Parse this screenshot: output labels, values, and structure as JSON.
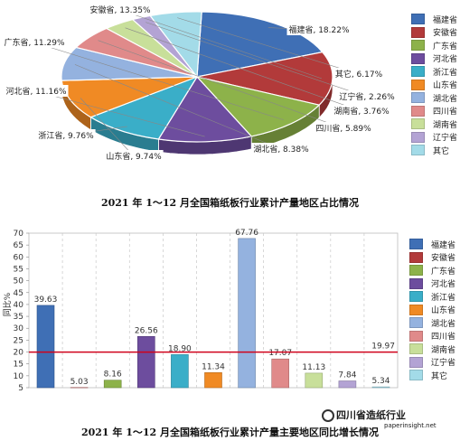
{
  "chart_data": [
    {
      "type": "pie",
      "title": "2021 年 1～12 月全国箱纸板行业累计产量地区占比情况",
      "series": [
        {
          "name": "福建省",
          "value": 18.22,
          "label": "福建省, 18.22%",
          "color": "#3f6fb5"
        },
        {
          "name": "安徽省",
          "value": 13.35,
          "label": "安徽省, 13.35%",
          "color": "#b23a3a"
        },
        {
          "name": "广东省",
          "value": 11.29,
          "label": "广东省, 11.29%",
          "color": "#8db24a"
        },
        {
          "name": "河北省",
          "value": 11.16,
          "label": "河北省, 11.16%",
          "color": "#6d4d9e"
        },
        {
          "name": "浙江省",
          "value": 9.76,
          "label": "浙江省, 9.76%",
          "color": "#3aaec8"
        },
        {
          "name": "山东省",
          "value": 9.74,
          "label": "山东省, 9.74%",
          "color": "#f08a24"
        },
        {
          "name": "湖北省",
          "value": 8.38,
          "label": "湖北省, 8.38%",
          "color": "#94b2df"
        },
        {
          "name": "四川省",
          "value": 5.89,
          "label": "四川省, 5.89%",
          "color": "#e08a8a"
        },
        {
          "name": "湖南省",
          "value": 3.76,
          "label": "湖南省, 3.76%",
          "color": "#c8df9a"
        },
        {
          "name": "辽宁省",
          "value": 2.26,
          "label": "辽宁省, 2.26%",
          "color": "#b3a3d4"
        },
        {
          "name": "其它",
          "value": 6.17,
          "label": "其它, 6.17%",
          "color": "#a3dbe8"
        }
      ],
      "legend": [
        "福建省",
        "安徽省",
        "广东省",
        "河北省",
        "浙江省",
        "山东省",
        "湖北省",
        "四川省",
        "湖南省",
        "辽宁省",
        "其它"
      ],
      "legend_position": "right"
    },
    {
      "type": "bar",
      "title": "2021 年 1～12 月全国箱纸板行业累计产量主要地区同比增长情况",
      "ylabel": "同比%",
      "ylim": [
        5,
        70
      ],
      "yticks": [
        5,
        10,
        15,
        20,
        25,
        30,
        35,
        40,
        45,
        50,
        55,
        60,
        65,
        70
      ],
      "categories": [
        "福建省",
        "安徽省",
        "广东省",
        "河北省",
        "浙江省",
        "山东省",
        "湖北省",
        "四川省",
        "湖南省",
        "辽宁省",
        "其它"
      ],
      "values": [
        39.63,
        5.03,
        8.16,
        26.56,
        18.9,
        11.34,
        67.76,
        17.07,
        11.13,
        7.84,
        5.34
      ],
      "value_labels": [
        "39.63",
        "5.03",
        "8.16",
        "26.56",
        "18.90",
        "11.34",
        "67.76",
        "17.07",
        "11.13",
        "7.84",
        "5.34"
      ],
      "colors": [
        "#3f6fb5",
        "#b23a3a",
        "#8db24a",
        "#6d4d9e",
        "#3aaec8",
        "#f08a24",
        "#94b2df",
        "#e08a8a",
        "#c8df9a",
        "#b3a3d4",
        "#a3dbe8"
      ],
      "reference_line": {
        "value": 19.97,
        "label": "19.97",
        "color": "#d0021b"
      },
      "grid": true,
      "legend": [
        "福建省",
        "安徽省",
        "广东省",
        "河北省",
        "浙江省",
        "山东省",
        "湖北省",
        "四川省",
        "湖南省",
        "辽宁省",
        "其它"
      ],
      "legend_position": "right"
    }
  ],
  "watermark": {
    "line1": "四川省造纸行业",
    "line2": "paperinsight.net"
  }
}
